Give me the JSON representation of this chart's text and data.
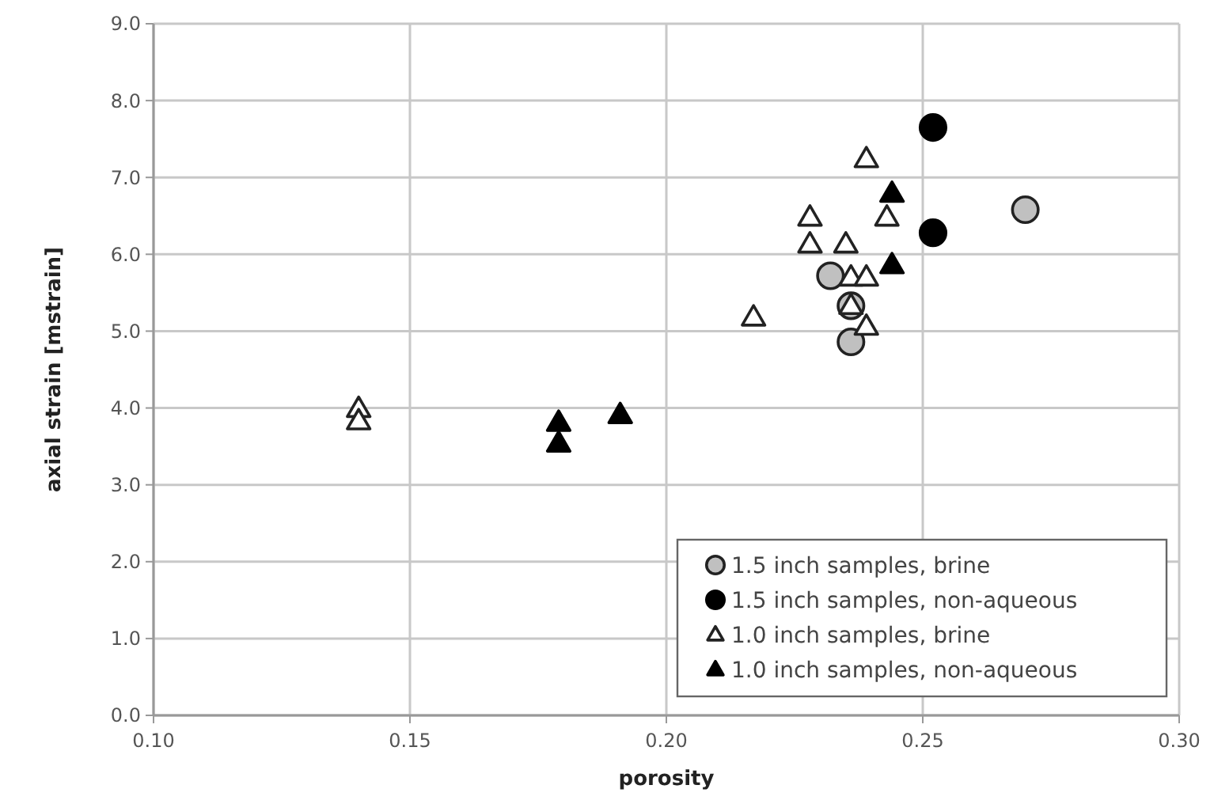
{
  "chart_data": {
    "type": "scatter",
    "xlabel": "porosity",
    "ylabel": "axial strain [mstrain]",
    "xlim": [
      0.1,
      0.3
    ],
    "ylim": [
      0,
      9
    ],
    "xticks": [
      {
        "value": 0.1,
        "label": "0.10"
      },
      {
        "value": 0.15,
        "label": "0.15"
      },
      {
        "value": 0.2,
        "label": "0.20"
      },
      {
        "value": 0.25,
        "label": "0.25"
      },
      {
        "value": 0.3,
        "label": "0.30"
      }
    ],
    "yticks": [
      {
        "value": 0,
        "label": "0.0"
      },
      {
        "value": 1,
        "label": "1.0"
      },
      {
        "value": 2,
        "label": "2.0"
      },
      {
        "value": 3,
        "label": "3.0"
      },
      {
        "value": 4,
        "label": "4.0"
      },
      {
        "value": 5,
        "label": "5.0"
      },
      {
        "value": 6,
        "label": "6.0"
      },
      {
        "value": 7,
        "label": "7.0"
      },
      {
        "value": 8,
        "label": "8.0"
      },
      {
        "value": 9,
        "label": "9.0"
      }
    ],
    "grid": true,
    "legend": "bottom right",
    "series": [
      {
        "name": "1.5 inch samples, brine",
        "color": "#c0c0c0",
        "marker": "circle",
        "x": [
          0.232,
          0.236,
          0.236,
          0.27
        ],
        "values": [
          5.72,
          5.33,
          4.86,
          6.58
        ]
      },
      {
        "name": "1.5 inch samples, non-aqueous",
        "color": "#000000",
        "marker": "circle",
        "x": [
          0.252,
          0.252
        ],
        "values": [
          7.65,
          6.28
        ]
      },
      {
        "name": "1.0 inch samples, brine",
        "color": "#ffffff",
        "marker": "triangle",
        "x": [
          0.239,
          0.228,
          0.243,
          0.228,
          0.235,
          0.236,
          0.239,
          0.236,
          0.239,
          0.217,
          0.14,
          0.14
        ],
        "values": [
          7.24,
          6.48,
          6.48,
          6.13,
          6.13,
          5.7,
          5.7,
          5.33,
          5.06,
          5.18,
          3.99,
          3.83
        ]
      },
      {
        "name": "1.0 inch samples, non-aqueous",
        "color": "#000000",
        "marker": "triangle",
        "x": [
          0.244,
          0.244,
          0.179,
          0.179,
          0.191
        ],
        "values": [
          6.79,
          5.86,
          3.81,
          3.54,
          3.91
        ]
      }
    ]
  }
}
